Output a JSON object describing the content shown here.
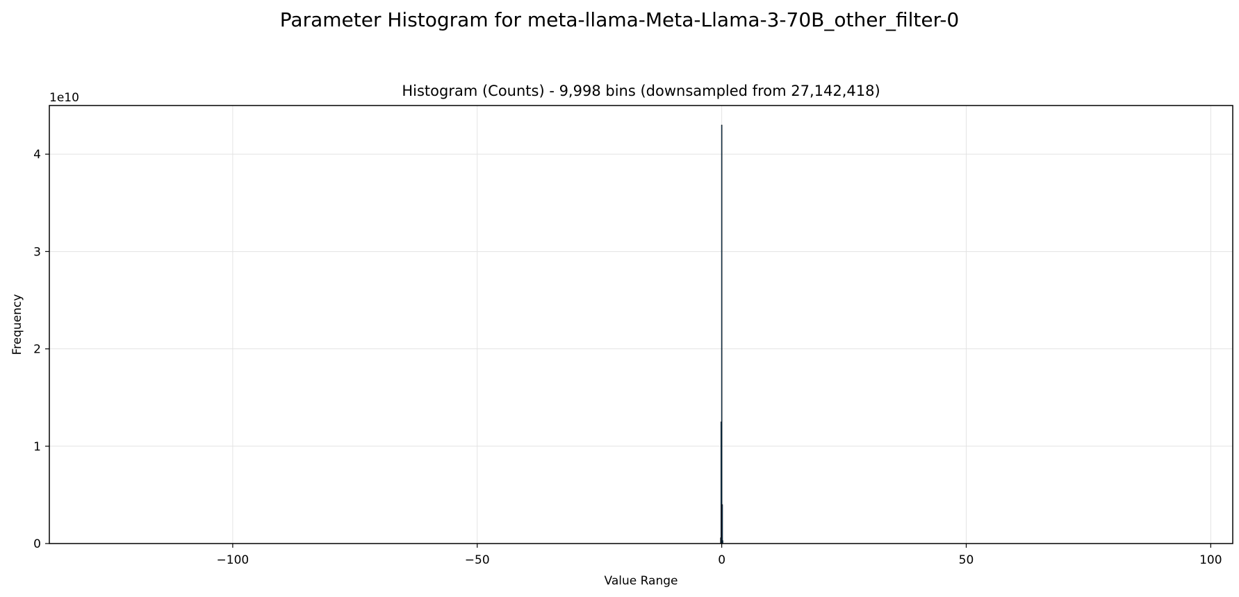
{
  "figure": {
    "suptitle": "Parameter Histogram for meta-llama-Meta-Llama-3-70B_other_filter-0"
  },
  "chart_data": {
    "type": "bar",
    "title": "Histogram (Counts) - 9,998 bins (downsampled from 27,142,418)",
    "xlabel": "Value Range",
    "ylabel": "Frequency",
    "y_offset_label": "1e10",
    "xlim": [
      -137.5,
      104.5
    ],
    "ylim": [
      0,
      45000000000.0
    ],
    "xticks": [
      -100,
      -50,
      0,
      50,
      100
    ],
    "xtick_labels": [
      "−100",
      "−50",
      "0",
      "50",
      "100"
    ],
    "yticks": [
      0,
      10000000000.0,
      20000000000.0,
      30000000000.0,
      40000000000.0
    ],
    "ytick_labels": [
      "0",
      "1",
      "2",
      "3",
      "4"
    ],
    "grid": true,
    "bar_color": "#1f77b4",
    "bar_edge_color": "#000000",
    "bins": [
      {
        "x": -0.2,
        "value": 600000000.0
      },
      {
        "x": -0.12,
        "value": 12500000000.0
      },
      {
        "x": 0.0,
        "value": 43000000000.0
      },
      {
        "x": 0.12,
        "value": 4000000000.0
      },
      {
        "x": 0.2,
        "value": 300000000.0
      }
    ]
  }
}
